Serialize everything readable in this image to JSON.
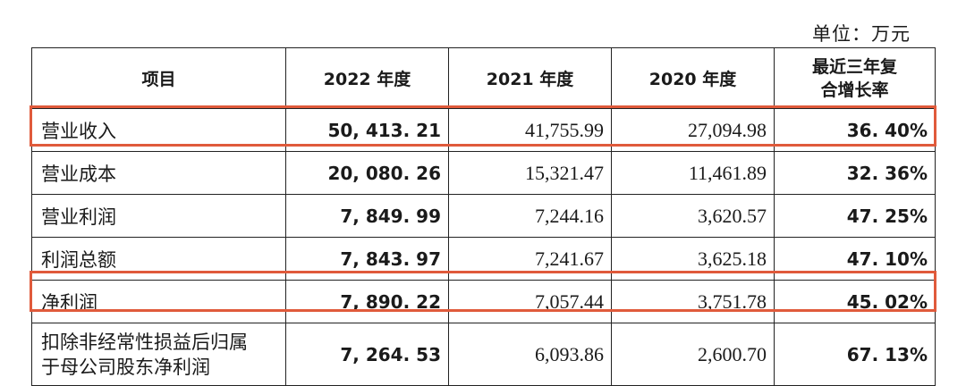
{
  "unit_label": "单位：万元",
  "headers": [
    "项目",
    "2022 年度",
    "2021 年度",
    "2020 年度",
    "最近三年复\n合增长率"
  ],
  "rows": [
    {
      "item": "营业收入",
      "y2022": "50, 413. 21",
      "y2021": "41,755.99",
      "y2020": "27,094.98",
      "cagr": "36. 40%",
      "highlighted": true
    },
    {
      "item": "营业成本",
      "y2022": "20, 080. 26",
      "y2021": "15,321.47",
      "y2020": "11,461.89",
      "cagr": "32. 36%",
      "highlighted": false
    },
    {
      "item": "营业利润",
      "y2022": "7, 849. 99",
      "y2021": "7,244.16",
      "y2020": "3,620.57",
      "cagr": "47. 25%",
      "highlighted": false
    },
    {
      "item": "利润总额",
      "y2022": "7, 843. 97",
      "y2021": "7,241.67",
      "y2020": "3,625.18",
      "cagr": "47. 10%",
      "highlighted": false
    },
    {
      "item": "净利润",
      "y2022": "7, 890. 22",
      "y2021": "7,057.44",
      "y2020": "3,751.78",
      "cagr": "45. 02%",
      "highlighted": true
    },
    {
      "item": "扣除非经常性损益后归属\n于母公司股东净利润",
      "y2022": "7, 264. 53",
      "y2021": "6,093.86",
      "y2020": "2,600.70",
      "cagr": "67. 13%",
      "highlighted": false
    }
  ],
  "colors": {
    "highlight_border": "#e05a3b",
    "grid": "#222222",
    "text": "#1a1a1a"
  }
}
